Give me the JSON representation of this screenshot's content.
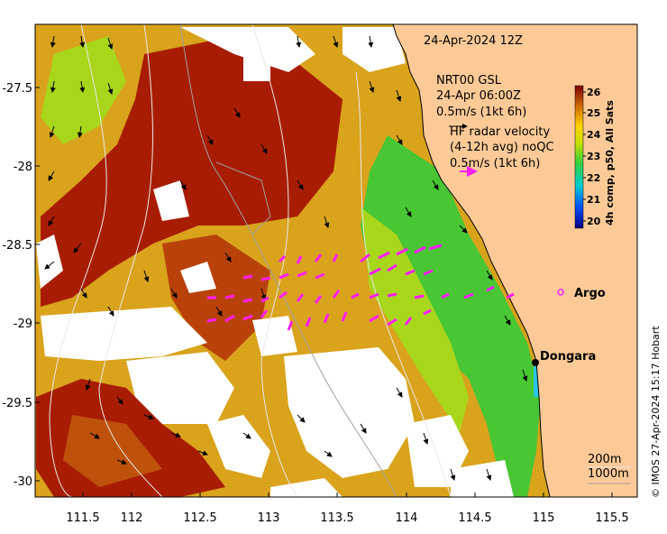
{
  "map": {
    "timestamp": "24-Apr-2024 12Z",
    "model_label": "NRT00 GSL",
    "model_time": "24-Apr 06:00Z",
    "model_scale": "0.5m/s (1kt 6h)",
    "radar_title": "HF radar velocity",
    "radar_subtitle": "(4-12h avg) noQC",
    "radar_scale": "0.5m/s (1kt 6h)",
    "argo_label": "Argo",
    "city_label": "Dongara",
    "contour_200": "200m",
    "contour_1000": "1000m",
    "credit": "© IMOS 27-Apr-2024 15:17 Hobart",
    "lon_ticks": [
      "111.5",
      "112",
      "112.5",
      "113",
      "113.5",
      "114",
      "114.5",
      "115",
      "115.5"
    ],
    "lat_ticks": [
      "-27.5",
      "-28",
      "-28.5",
      "-29",
      "-29.5",
      "-30"
    ],
    "colorbar": {
      "title": "4h comp, p50, All Sats",
      "ticks": [
        "26",
        "25",
        "24",
        "23",
        "22",
        "21",
        "20"
      ]
    },
    "colors": {
      "land": "#fdca97",
      "warm": "#a51a00",
      "mid": "#d4880e",
      "cool": "#3fc431",
      "radar": "#ff1cff"
    }
  }
}
